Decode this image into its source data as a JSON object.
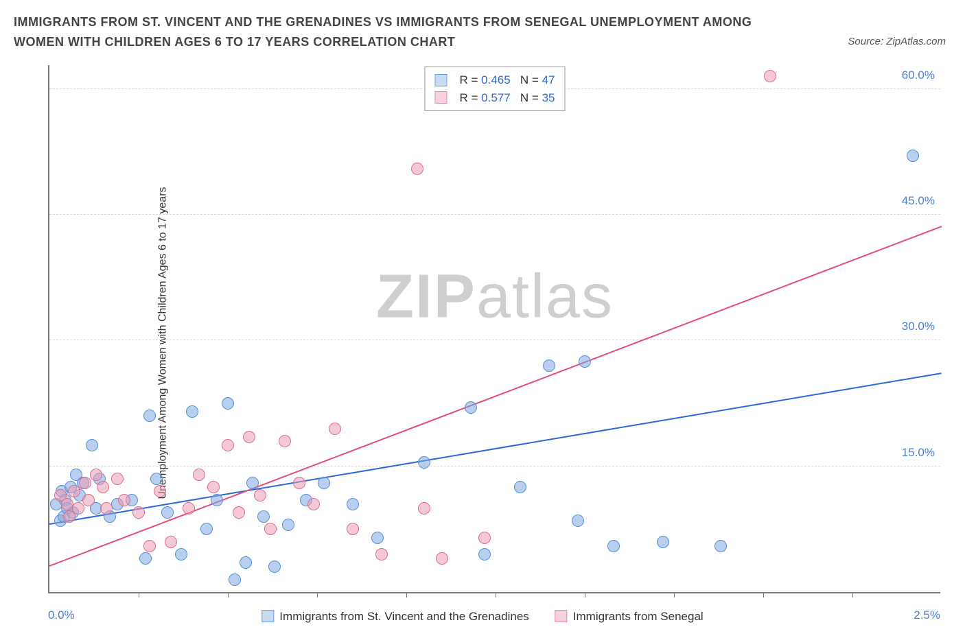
{
  "header": {
    "title": "IMMIGRANTS FROM ST. VINCENT AND THE GRENADINES VS IMMIGRANTS FROM SENEGAL UNEMPLOYMENT AMONG WOMEN WITH CHILDREN AGES 6 TO 17 YEARS CORRELATION CHART",
    "source_prefix": "Source: ",
    "source_name": "ZipAtlas.com"
  },
  "chart": {
    "type": "scatter",
    "ylabel": "Unemployment Among Women with Children Ages 6 to 17 years",
    "background_color": "#ffffff",
    "grid_color": "#d8d8d8",
    "axis_color": "#777777",
    "label_color": "#4a7fd6",
    "text_color": "#333333",
    "title_fontsize": 18,
    "label_fontsize": 17,
    "ylabel_fontsize": 16,
    "point_radius": 9,
    "xlim": [
      0.0,
      2.5
    ],
    "ylim": [
      0.0,
      63.0
    ],
    "xaxis_left_label": "0.0%",
    "xaxis_right_label": "2.5%",
    "xtick_positions": [
      0.25,
      0.5,
      0.75,
      1.0,
      1.25,
      1.5,
      1.75,
      2.0,
      2.25
    ],
    "yticks": [
      {
        "value": 15.0,
        "label": "15.0%"
      },
      {
        "value": 30.0,
        "label": "30.0%"
      },
      {
        "value": 45.0,
        "label": "45.0%"
      },
      {
        "value": 60.0,
        "label": "60.0%"
      }
    ],
    "watermark": {
      "bold": "ZIP",
      "light": "atlas",
      "color": "#cfcfcf",
      "fontsize": 90
    },
    "top_legend": {
      "rows": [
        {
          "swatch_fill": "#c9dbf3",
          "swatch_border": "#6d9be0",
          "r_label": "R =",
          "r_value": "0.465",
          "n_label": "N =",
          "n_value": "47"
        },
        {
          "swatch_fill": "#f6d3dc",
          "swatch_border": "#e58ba3",
          "r_label": "R =",
          "r_value": "0.577",
          "n_label": "N =",
          "n_value": "35"
        }
      ]
    },
    "bottom_legend": {
      "items": [
        {
          "swatch_fill": "#c9dbf3",
          "swatch_border": "#6d9be0",
          "label": "Immigrants from St. Vincent and the Grenadines"
        },
        {
          "swatch_fill": "#f6d3dc",
          "swatch_border": "#e58ba3",
          "label": "Immigrants from Senegal"
        }
      ]
    },
    "series": [
      {
        "name": "St. Vincent and the Grenadines",
        "fill": "rgba(125,168,226,0.55)",
        "stroke": "#5a8fd6",
        "trend": {
          "color": "#2b68d8",
          "x1": 0.0,
          "y1": 8.0,
          "x2": 2.5,
          "y2": 26.0
        },
        "points": [
          {
            "x": 0.02,
            "y": 10.5
          },
          {
            "x": 0.03,
            "y": 8.5
          },
          {
            "x": 0.035,
            "y": 12.0
          },
          {
            "x": 0.04,
            "y": 9.0
          },
          {
            "x": 0.045,
            "y": 11.0
          },
          {
            "x": 0.05,
            "y": 10.0
          },
          {
            "x": 0.06,
            "y": 12.5
          },
          {
            "x": 0.065,
            "y": 9.5
          },
          {
            "x": 0.075,
            "y": 14.0
          },
          {
            "x": 0.085,
            "y": 11.5
          },
          {
            "x": 0.095,
            "y": 13.0
          },
          {
            "x": 0.12,
            "y": 17.5
          },
          {
            "x": 0.13,
            "y": 10.0
          },
          {
            "x": 0.14,
            "y": 13.5
          },
          {
            "x": 0.17,
            "y": 9.0
          },
          {
            "x": 0.19,
            "y": 10.5
          },
          {
            "x": 0.23,
            "y": 11.0
          },
          {
            "x": 0.27,
            "y": 4.0
          },
          {
            "x": 0.3,
            "y": 13.5
          },
          {
            "x": 0.33,
            "y": 9.5
          },
          {
            "x": 0.37,
            "y": 4.5
          },
          {
            "x": 0.4,
            "y": 21.5
          },
          {
            "x": 0.44,
            "y": 7.5
          },
          {
            "x": 0.47,
            "y": 11.0
          },
          {
            "x": 0.5,
            "y": 22.5
          },
          {
            "x": 0.52,
            "y": 1.5
          },
          {
            "x": 0.55,
            "y": 3.5
          },
          {
            "x": 0.57,
            "y": 13.0
          },
          {
            "x": 0.6,
            "y": 9.0
          },
          {
            "x": 0.63,
            "y": 3.0
          },
          {
            "x": 0.67,
            "y": 8.0
          },
          {
            "x": 0.72,
            "y": 11.0
          },
          {
            "x": 0.77,
            "y": 13.0
          },
          {
            "x": 0.85,
            "y": 10.5
          },
          {
            "x": 0.92,
            "y": 6.5
          },
          {
            "x": 1.05,
            "y": 15.5
          },
          {
            "x": 1.18,
            "y": 22.0
          },
          {
            "x": 1.22,
            "y": 4.5
          },
          {
            "x": 1.32,
            "y": 12.5
          },
          {
            "x": 1.4,
            "y": 27.0
          },
          {
            "x": 1.48,
            "y": 8.5
          },
          {
            "x": 1.5,
            "y": 27.5
          },
          {
            "x": 1.58,
            "y": 5.5
          },
          {
            "x": 1.72,
            "y": 6.0
          },
          {
            "x": 1.88,
            "y": 5.5
          },
          {
            "x": 2.42,
            "y": 52.0
          },
          {
            "x": 0.28,
            "y": 21.0
          }
        ]
      },
      {
        "name": "Senegal",
        "fill": "rgba(236,155,178,0.55)",
        "stroke": "#dd6e8f",
        "trend": {
          "color": "#e34d73",
          "x1": 0.0,
          "y1": 3.0,
          "x2": 2.5,
          "y2": 43.5
        },
        "points": [
          {
            "x": 0.03,
            "y": 11.5
          },
          {
            "x": 0.05,
            "y": 10.5
          },
          {
            "x": 0.055,
            "y": 9.0
          },
          {
            "x": 0.07,
            "y": 12.0
          },
          {
            "x": 0.08,
            "y": 10.0
          },
          {
            "x": 0.1,
            "y": 13.0
          },
          {
            "x": 0.11,
            "y": 11.0
          },
          {
            "x": 0.13,
            "y": 14.0
          },
          {
            "x": 0.15,
            "y": 12.5
          },
          {
            "x": 0.16,
            "y": 10.0
          },
          {
            "x": 0.19,
            "y": 13.5
          },
          {
            "x": 0.21,
            "y": 11.0
          },
          {
            "x": 0.25,
            "y": 9.5
          },
          {
            "x": 0.28,
            "y": 5.5
          },
          {
            "x": 0.31,
            "y": 12.0
          },
          {
            "x": 0.34,
            "y": 6.0
          },
          {
            "x": 0.39,
            "y": 10.0
          },
          {
            "x": 0.42,
            "y": 14.0
          },
          {
            "x": 0.46,
            "y": 12.5
          },
          {
            "x": 0.5,
            "y": 17.5
          },
          {
            "x": 0.53,
            "y": 9.5
          },
          {
            "x": 0.56,
            "y": 18.5
          },
          {
            "x": 0.59,
            "y": 11.5
          },
          {
            "x": 0.62,
            "y": 7.5
          },
          {
            "x": 0.66,
            "y": 18.0
          },
          {
            "x": 0.7,
            "y": 13.0
          },
          {
            "x": 0.74,
            "y": 10.5
          },
          {
            "x": 0.8,
            "y": 19.5
          },
          {
            "x": 0.85,
            "y": 7.5
          },
          {
            "x": 0.93,
            "y": 4.5
          },
          {
            "x": 1.05,
            "y": 10.0
          },
          {
            "x": 1.1,
            "y": 4.0
          },
          {
            "x": 1.22,
            "y": 6.5
          },
          {
            "x": 1.03,
            "y": 50.5
          },
          {
            "x": 2.02,
            "y": 61.5
          }
        ]
      }
    ]
  }
}
